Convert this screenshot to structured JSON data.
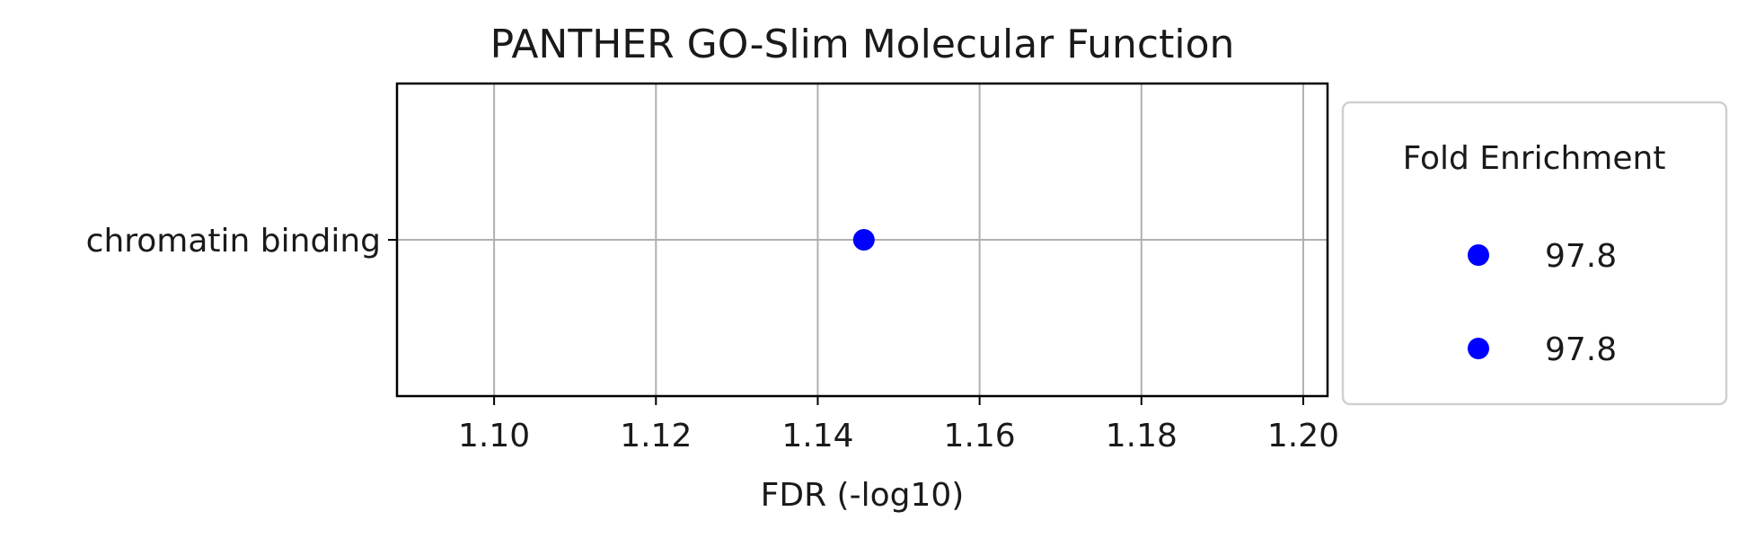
{
  "chart_data": {
    "type": "scatter",
    "title": "PANTHER GO-Slim Molecular Function",
    "xlabel": "FDR (-log10)",
    "ylabel": "",
    "xlim": [
      1.088,
      1.203
    ],
    "xticks": [
      1.1,
      1.12,
      1.14,
      1.16,
      1.18,
      1.2
    ],
    "xtick_labels": [
      "1.10",
      "1.12",
      "1.14",
      "1.16",
      "1.18",
      "1.20"
    ],
    "categories": [
      "chromatin binding"
    ],
    "grid": true,
    "points": [
      {
        "category": "chromatin binding",
        "x": 1.1457,
        "fold_enrichment": 97.8
      }
    ],
    "point_color": "#0000ff",
    "legend": {
      "title": "Fold Enrichment",
      "placement": "outside-right",
      "entries": [
        "97.8",
        "97.8"
      ]
    }
  }
}
